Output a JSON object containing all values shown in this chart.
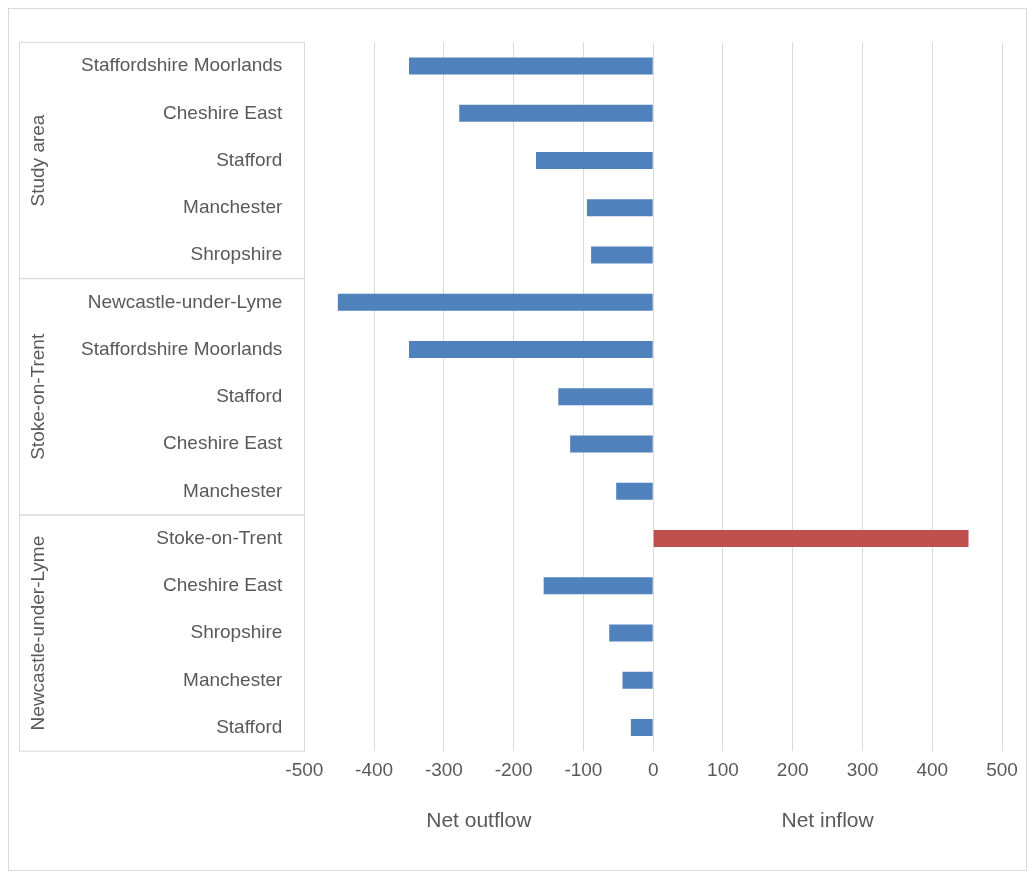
{
  "chart_data": {
    "type": "bar",
    "orientation": "horizontal",
    "categories": [
      "Staffordshire Moorlands",
      "Cheshire East",
      "Stafford",
      "Manchester",
      "Shropshire",
      "Newcastle-under-Lyme",
      "Staffordshire Moorlands",
      "Stafford",
      "Cheshire East",
      "Manchester",
      "Stoke-on-Trent",
      "Cheshire East",
      "Shropshire",
      "Manchester",
      "Stafford"
    ],
    "values": [
      -350,
      -278,
      -168,
      -95,
      -89,
      -452,
      -350,
      -136,
      -119,
      -53,
      452,
      -157,
      -63,
      -44,
      -32
    ],
    "colors": [
      "#4f81bd",
      "#4f81bd",
      "#4f81bd",
      "#4f81bd",
      "#4f81bd",
      "#4f81bd",
      "#4f81bd",
      "#4f81bd",
      "#4f81bd",
      "#4f81bd",
      "#c0504d",
      "#4f81bd",
      "#4f81bd",
      "#4f81bd",
      "#4f81bd"
    ],
    "xlim": [
      -500,
      500
    ],
    "xticks": [
      -500,
      -400,
      -300,
      -200,
      -100,
      0,
      100,
      200,
      300,
      400,
      500
    ],
    "grid": "x",
    "legend": false,
    "xlabel": "Net outflow",
    "annotations": [
      "Study area",
      "Stoke-on-Trent",
      "Newcastle-under-Lyme",
      "Net inflow"
    ]
  }
}
